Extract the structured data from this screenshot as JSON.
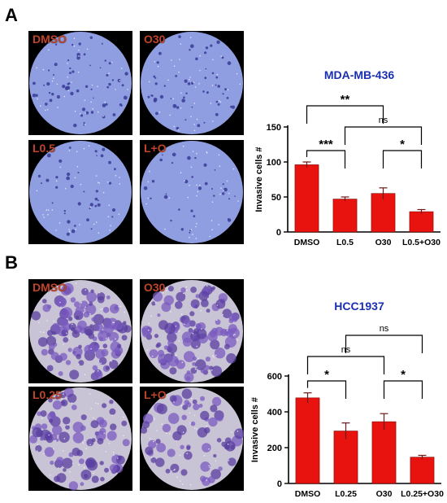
{
  "panels": [
    {
      "letter": "A",
      "images": [
        {
          "label": "DMSO",
          "density": 0.55,
          "style": "sparse"
        },
        {
          "label": "O30",
          "density": 0.5,
          "style": "sparse"
        },
        {
          "label": "L0.5",
          "density": 0.35,
          "style": "sparse"
        },
        {
          "label": "L+O",
          "density": 0.3,
          "style": "sparse"
        }
      ]
    },
    {
      "letter": "B",
      "images": [
        {
          "label": "DMSO",
          "density": 0.9,
          "style": "dense"
        },
        {
          "label": "O30",
          "density": 0.8,
          "style": "dense"
        },
        {
          "label": "L0.25",
          "density": 0.6,
          "style": "dense"
        },
        {
          "label": "L+O",
          "density": 0.45,
          "style": "dense"
        }
      ]
    }
  ],
  "chart_data": [
    {
      "type": "bar",
      "title": "MDA-MB-436",
      "ylabel": "Invasive cells #",
      "xlabel": "",
      "categories": [
        "DMSO",
        "L0.5",
        "O30",
        "L0.5+O30"
      ],
      "values": [
        96,
        47,
        55,
        29
      ],
      "errors": [
        4,
        3,
        8,
        3
      ],
      "ylim": [
        0,
        150
      ],
      "yticks": [
        0,
        50,
        100,
        150
      ],
      "bar_color": "#e8130e",
      "significance": [
        {
          "from": 0,
          "to": 2,
          "label": "**"
        },
        {
          "from": 1,
          "to": 3,
          "label": "ns"
        },
        {
          "from": 0,
          "to": 1,
          "label": "***"
        },
        {
          "from": 2,
          "to": 3,
          "label": "*"
        }
      ]
    },
    {
      "type": "bar",
      "title": "HCC1937",
      "ylabel": "Invasive cells #",
      "xlabel": "",
      "categories": [
        "DMSO",
        "L0.25",
        "O30",
        "L0.25+O30"
      ],
      "values": [
        478,
        293,
        345,
        147
      ],
      "errors": [
        28,
        45,
        45,
        10
      ],
      "ylim": [
        0,
        600
      ],
      "yticks": [
        0,
        200,
        400,
        600
      ],
      "bar_color": "#e8130e",
      "significance": [
        {
          "from": 1,
          "to": 3,
          "label": "ns"
        },
        {
          "from": 0,
          "to": 2,
          "label": "ns"
        },
        {
          "from": 0,
          "to": 1,
          "label": "*"
        },
        {
          "from": 2,
          "to": 3,
          "label": "*"
        }
      ]
    }
  ]
}
